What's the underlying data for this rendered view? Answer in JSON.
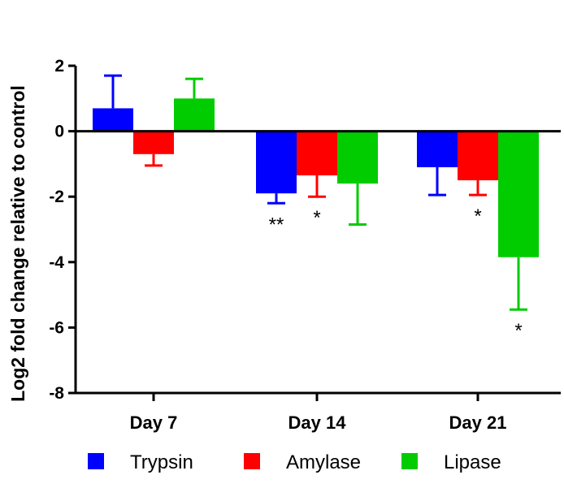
{
  "chart_data": {
    "type": "bar",
    "title": "",
    "xlabel": "",
    "ylabel": "Log2 fold change relative to control",
    "ylim": [
      -8,
      2
    ],
    "yticks": [
      2,
      0,
      -2,
      -4,
      -6,
      -8
    ],
    "categories": [
      "Day 7",
      "Day 14",
      "Day 21"
    ],
    "series": [
      {
        "name": "Trypsin",
        "color": "#0000ff",
        "values": [
          0.7,
          -1.9,
          -1.1
        ],
        "errors": [
          1.0,
          0.3,
          0.85
        ],
        "significance": [
          "",
          "**",
          ""
        ]
      },
      {
        "name": "Amylase",
        "color": "#ff0000",
        "values": [
          -0.7,
          -1.35,
          -1.5
        ],
        "errors": [
          0.35,
          0.65,
          0.45
        ],
        "significance": [
          "",
          "*",
          "*"
        ]
      },
      {
        "name": "Lipase",
        "color": "#00cc00",
        "values": [
          1.0,
          -1.6,
          -3.85
        ],
        "errors": [
          0.6,
          1.25,
          1.6
        ],
        "significance": [
          "",
          "",
          "*"
        ]
      }
    ],
    "legend_position": "bottom"
  }
}
